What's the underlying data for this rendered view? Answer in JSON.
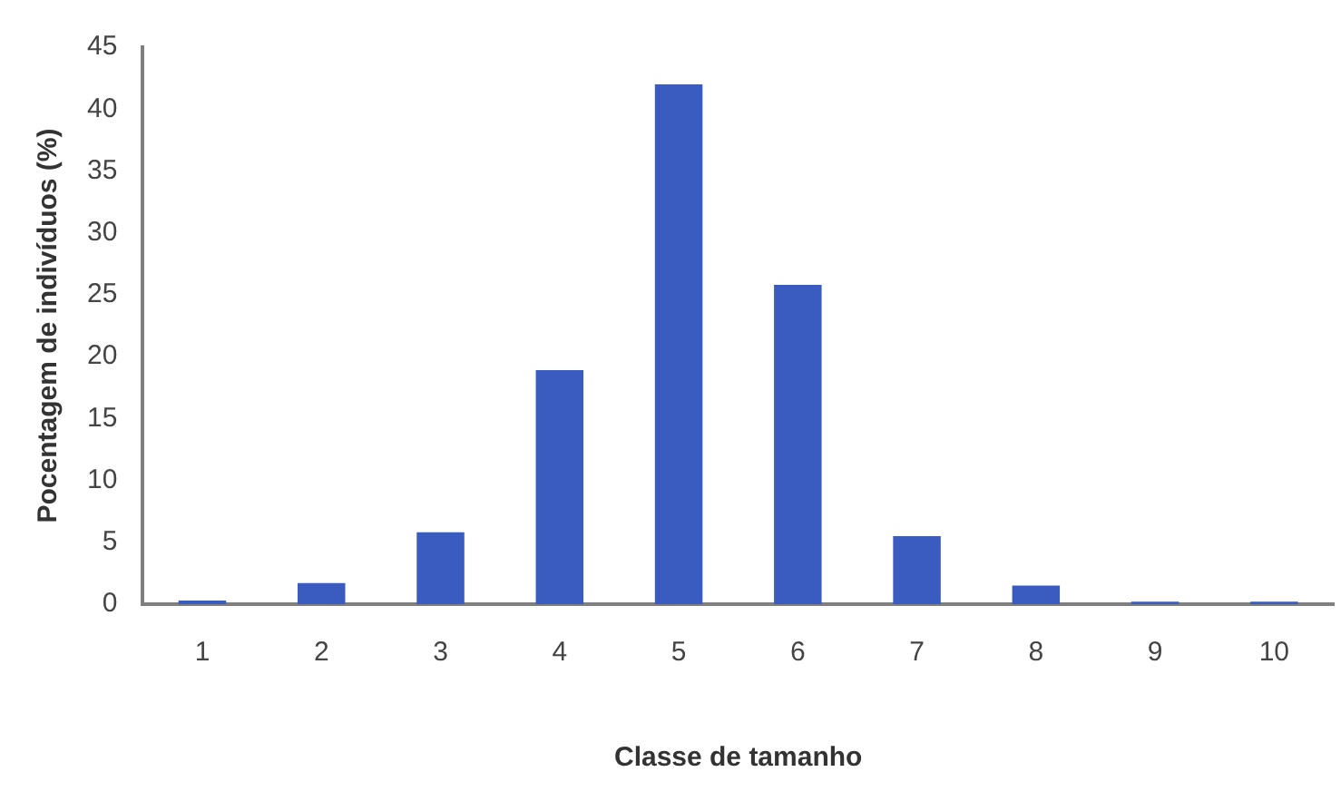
{
  "chart_data": {
    "type": "bar",
    "xlabel": "Classe de tamanho",
    "ylabel": "Pocentagem de indivíduos (%)",
    "categories": [
      "1",
      "2",
      "3",
      "4",
      "5",
      "6",
      "7",
      "8",
      "9",
      "10"
    ],
    "values": [
      0.3,
      1.7,
      5.8,
      18.9,
      42.0,
      25.8,
      5.5,
      1.5,
      0.2,
      0.2
    ],
    "color": "#3a5cc0",
    "ylim": [
      0,
      45
    ],
    "yticks": [
      0,
      5,
      10,
      15,
      20,
      25,
      30,
      35,
      40,
      45
    ],
    "grid": false,
    "legend": false
  }
}
